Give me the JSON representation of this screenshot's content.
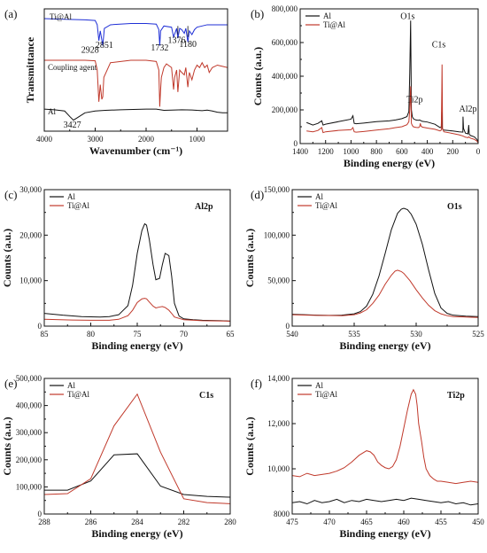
{
  "chart_data": [
    {
      "type": "line",
      "panel_label": "(a)",
      "xlabel": "Wavenumber (cm⁻¹)",
      "ylabel": "Transmittance",
      "xlim": [
        4000,
        400
      ],
      "x_reversed": true,
      "xticks": [
        4000,
        3000,
        2000,
        1000
      ],
      "series": [
        {
          "name": "Ti@Al",
          "color": "#1f2fd6",
          "x": [
            4000,
            3600,
            3200,
            3000,
            2960,
            2928,
            2900,
            2851,
            2820,
            2700,
            2300,
            2000,
            1800,
            1750,
            1732,
            1715,
            1650,
            1500,
            1460,
            1400,
            1376,
            1340,
            1300,
            1250,
            1220,
            1180,
            1150,
            1100,
            1050,
            1000,
            800,
            600,
            400
          ],
          "y": [
            92,
            91.5,
            91,
            90.5,
            87,
            74,
            82,
            70,
            84,
            87,
            88,
            88,
            87.5,
            83,
            70,
            82,
            86,
            85,
            77,
            84,
            76,
            84,
            83,
            80,
            84,
            73,
            82,
            79,
            83,
            85,
            87,
            87,
            87
          ]
        },
        {
          "name": "Coupling agent",
          "color": "#c0392b",
          "x": [
            4000,
            3600,
            3200,
            3000,
            2960,
            2928,
            2900,
            2870,
            2851,
            2830,
            2700,
            2300,
            2000,
            1800,
            1750,
            1732,
            1715,
            1700,
            1650,
            1600,
            1500,
            1460,
            1440,
            1400,
            1376,
            1340,
            1300,
            1250,
            1220,
            1180,
            1150,
            1100,
            1050,
            1000,
            950,
            900,
            850,
            800,
            760,
            700,
            600,
            500,
            400
          ],
          "y": [
            58,
            58,
            58,
            57.5,
            50,
            24,
            38,
            26,
            28,
            44,
            56,
            58,
            58,
            57,
            50,
            20,
            34,
            44,
            52,
            55,
            52,
            34,
            44,
            50,
            32,
            50,
            48,
            46,
            52,
            36,
            48,
            42,
            50,
            54,
            52,
            56,
            52,
            54,
            48,
            52,
            54,
            53,
            52
          ]
        },
        {
          "name": "Al",
          "color": "#111111",
          "x": [
            4000,
            3800,
            3600,
            3500,
            3427,
            3350,
            3200,
            3000,
            2800,
            2500,
            2000,
            1800,
            1650,
            1500,
            1300,
            1100,
            1000,
            900,
            800,
            700,
            600,
            500,
            400
          ],
          "y": [
            18,
            17.5,
            16.5,
            12,
            9,
            11,
            15,
            16.5,
            17,
            17.5,
            18,
            18,
            17,
            17.2,
            17.5,
            17.3,
            17,
            16.8,
            17.2,
            16.5,
            15.5,
            15,
            15
          ]
        }
      ],
      "annotations": [
        "2928",
        "2851",
        "1732",
        "1376",
        "1180",
        "3427"
      ]
    },
    {
      "type": "line",
      "panel_label": "(b)",
      "xlabel": "Binding energy (eV)",
      "ylabel": "Counts (a.u.)",
      "xlim": [
        1400,
        0
      ],
      "x_reversed": true,
      "ylim": [
        0,
        800000
      ],
      "xticks": [
        1400,
        1200,
        1000,
        800,
        600,
        400,
        200,
        0
      ],
      "yticks": [
        0,
        200000,
        400000,
        600000,
        800000
      ],
      "ytick_labels": [
        "0",
        "200,000",
        "400,000",
        "600,000",
        "800,000"
      ],
      "legend_position": "top-left",
      "series": [
        {
          "name": "Al",
          "color": "#111111",
          "x": [
            1350,
            1300,
            1260,
            1230,
            1220,
            1200,
            1100,
            1000,
            985,
            975,
            960,
            900,
            800,
            700,
            650,
            600,
            560,
            545,
            538,
            531,
            525,
            518,
            510,
            490,
            470,
            460,
            450,
            440,
            400,
            340,
            300,
            290,
            286,
            284,
            280,
            270,
            200,
            150,
            120,
            119,
            115,
            100,
            90,
            80,
            74,
            70,
            60,
            30,
            10,
            0
          ],
          "y": [
            125000,
            110000,
            120000,
            135000,
            110000,
            115000,
            130000,
            145000,
            165000,
            120000,
            118000,
            122000,
            130000,
            135000,
            140000,
            148000,
            160000,
            190000,
            420000,
            730000,
            200000,
            160000,
            148000,
            140000,
            138000,
            140000,
            136000,
            132000,
            128000,
            115000,
            95000,
            98000,
            190000,
            100000,
            85000,
            80000,
            75000,
            70000,
            68000,
            160000,
            90000,
            62000,
            60000,
            58000,
            110000,
            55000,
            48000,
            40000,
            25000,
            10000
          ]
        },
        {
          "name": "Ti@Al",
          "color": "#c0392b",
          "x": [
            1350,
            1300,
            1260,
            1230,
            1220,
            1200,
            1100,
            1000,
            985,
            975,
            960,
            900,
            800,
            700,
            650,
            600,
            560,
            545,
            538,
            531,
            525,
            518,
            510,
            490,
            470,
            460,
            455,
            450,
            440,
            400,
            340,
            300,
            290,
            286,
            284,
            280,
            270,
            200,
            150,
            120,
            100,
            80,
            74,
            60,
            30,
            10,
            0
          ],
          "y": [
            75000,
            70000,
            78000,
            95000,
            65000,
            70000,
            78000,
            82000,
            95000,
            70000,
            68000,
            72000,
            80000,
            88000,
            95000,
            100000,
            112000,
            130000,
            200000,
            340000,
            120000,
            108000,
            100000,
            96000,
            95000,
            100000,
            120000,
            105000,
            98000,
            92000,
            85000,
            75000,
            80000,
            310000,
            470000,
            90000,
            70000,
            60000,
            52000,
            45000,
            38000,
            35000,
            40000,
            32000,
            25000,
            15000,
            5000
          ]
        }
      ],
      "annotations": [
        "O1s",
        "C1s",
        "Ti2p",
        "Al2p"
      ]
    },
    {
      "type": "line",
      "panel_label": "(c)",
      "panel_title": "Al2p",
      "xlabel": "Binding energy (eV)",
      "ylabel": "Counts (a.u.)",
      "xlim": [
        85,
        65
      ],
      "x_reversed": true,
      "ylim": [
        0,
        30000
      ],
      "xticks": [
        85,
        80,
        75,
        70,
        65
      ],
      "yticks": [
        0,
        10000,
        20000,
        30000
      ],
      "ytick_labels": [
        "0",
        "10,000",
        "20,000",
        "30,000"
      ],
      "legend_position": "top-left",
      "series": [
        {
          "name": "Al",
          "color": "#111111",
          "x": [
            85,
            83,
            81,
            79,
            78,
            77,
            76,
            75.5,
            75,
            74.5,
            74.2,
            74,
            73.7,
            73.3,
            73,
            72.6,
            72.3,
            72,
            71.6,
            71.3,
            71,
            70.5,
            70,
            69,
            68,
            66,
            65
          ],
          "y": [
            2800,
            2400,
            2100,
            2000,
            2100,
            2500,
            4500,
            9000,
            16000,
            21000,
            22500,
            22200,
            19000,
            13500,
            10200,
            10500,
            13500,
            16000,
            15500,
            11000,
            5000,
            2200,
            1600,
            1400,
            1300,
            1200,
            1100
          ]
        },
        {
          "name": "Ti@Al",
          "color": "#c0392b",
          "x": [
            85,
            82,
            80,
            78,
            77,
            76,
            75.5,
            75,
            74.5,
            74.2,
            74,
            73.7,
            73.3,
            73,
            72.6,
            72.3,
            72,
            71.6,
            71.3,
            71,
            70,
            68,
            65
          ],
          "y": [
            1500,
            1350,
            1300,
            1300,
            1500,
            2300,
            3500,
            5200,
            6000,
            6100,
            6000,
            5300,
            4400,
            4000,
            4200,
            4300,
            4100,
            3500,
            2800,
            2000,
            1400,
            1200,
            1100
          ]
        }
      ]
    },
    {
      "type": "line",
      "panel_label": "(d)",
      "panel_title": "O1s",
      "xlabel": "Binding energy (eV)",
      "ylabel": "Counts (a.u.)",
      "xlim": [
        540,
        525
      ],
      "x_reversed": true,
      "ylim": [
        0,
        150000
      ],
      "xticks": [
        540,
        535,
        530,
        525
      ],
      "yticks": [
        0,
        50000,
        100000,
        150000
      ],
      "ytick_labels": [
        "0",
        "50,000",
        "100,000",
        "150,000"
      ],
      "legend_position": "top-left",
      "series": [
        {
          "name": "Al",
          "color": "#111111",
          "x": [
            540,
            539,
            538,
            537,
            536,
            535,
            534.5,
            534,
            533.5,
            533,
            532.5,
            532,
            531.5,
            531.2,
            531,
            530.7,
            530.4,
            530,
            529.5,
            529,
            528.5,
            528,
            527.5,
            527,
            526,
            525
          ],
          "y": [
            13000,
            12500,
            12000,
            11800,
            12000,
            13500,
            16000,
            22000,
            35000,
            55000,
            80000,
            106000,
            124000,
            128500,
            129500,
            128000,
            123000,
            112000,
            90000,
            62000,
            36000,
            20000,
            14000,
            12000,
            11000,
            10500
          ]
        },
        {
          "name": "Ti@Al",
          "color": "#c0392b",
          "x": [
            540,
            538,
            536,
            535,
            534.5,
            534,
            533.5,
            533,
            532.5,
            532,
            531.7,
            531.5,
            531.2,
            531,
            530.5,
            530,
            529.5,
            529,
            528.5,
            528,
            527.5,
            527,
            526,
            525
          ],
          "y": [
            12500,
            11800,
            11500,
            12500,
            14500,
            18000,
            25000,
            34000,
            46000,
            56000,
            60500,
            61500,
            60000,
            58000,
            50000,
            40000,
            31000,
            23000,
            17000,
            13500,
            11500,
            10500,
            10000,
            9500
          ]
        }
      ]
    },
    {
      "type": "line",
      "panel_label": "(e)",
      "panel_title": "C1s",
      "xlabel": "Binding energy (eV)",
      "ylabel": "Counts (a.u.)",
      "xlim": [
        288,
        280
      ],
      "x_reversed": true,
      "ylim": [
        0,
        500000
      ],
      "xticks": [
        288,
        286,
        284,
        282,
        280
      ],
      "yticks": [
        0,
        100000,
        200000,
        300000,
        400000,
        500000
      ],
      "ytick_labels": [
        "0",
        "100,000",
        "200,000",
        "300,000",
        "400,000",
        "500,000"
      ],
      "legend_position": "top-left",
      "series": [
        {
          "name": "Al",
          "color": "#111111",
          "x": [
            288,
            287,
            286,
            285,
            284,
            283,
            282,
            281,
            280
          ],
          "y": [
            88000,
            88000,
            122000,
            218000,
            222000,
            103000,
            72000,
            65000,
            62000
          ]
        },
        {
          "name": "Ti@Al",
          "color": "#c0392b",
          "x": [
            288,
            287,
            286,
            285,
            284,
            283,
            282,
            281,
            280
          ],
          "y": [
            72000,
            75000,
            130000,
            325000,
            442000,
            228000,
            56000,
            42000,
            38000
          ]
        }
      ]
    },
    {
      "type": "line",
      "panel_label": "(f)",
      "panel_title": "Ti2p",
      "xlabel": "Binding energy (eV)",
      "ylabel": "Counts (a.u.)",
      "xlim": [
        475,
        450
      ],
      "x_reversed": true,
      "ylim": [
        8000,
        14000
      ],
      "xticks": [
        475,
        470,
        465,
        460,
        455,
        450
      ],
      "yticks": [
        8000,
        10000,
        12000,
        14000
      ],
      "ytick_labels": [
        "8000",
        "10,000",
        "12,000",
        "14,000"
      ],
      "legend_position": "top-left",
      "series": [
        {
          "name": "Al",
          "color": "#111111",
          "x": [
            475,
            474,
            473,
            472,
            471,
            470,
            469,
            468,
            467,
            466,
            465,
            464,
            463,
            462,
            461,
            460,
            459,
            458,
            457,
            456,
            455,
            454,
            453,
            452,
            451,
            450
          ],
          "y": [
            8500,
            8550,
            8450,
            8600,
            8500,
            8550,
            8650,
            8500,
            8600,
            8550,
            8650,
            8600,
            8550,
            8600,
            8650,
            8600,
            8700,
            8650,
            8600,
            8550,
            8500,
            8550,
            8450,
            8500,
            8400,
            8450
          ]
        },
        {
          "name": "Ti@Al",
          "color": "#c0392b",
          "x": [
            475,
            474,
            473,
            472,
            471,
            470,
            469,
            468,
            467,
            466,
            465,
            464.5,
            464,
            463.5,
            463,
            462.5,
            462,
            461.5,
            461,
            460.5,
            460,
            459.5,
            459,
            458.7,
            458.4,
            458.2,
            458,
            457.6,
            457.3,
            457,
            456.5,
            456,
            455.5,
            455,
            454,
            453,
            452,
            451,
            450
          ],
          "y": [
            9700,
            9650,
            9800,
            9700,
            9750,
            9800,
            9900,
            10050,
            10300,
            10600,
            10800,
            10750,
            10600,
            10300,
            10150,
            10050,
            10000,
            10100,
            10400,
            11000,
            11800,
            12600,
            13300,
            13500,
            13300,
            12800,
            12000,
            11200,
            10500,
            10000,
            9700,
            9550,
            9450,
            9450,
            9400,
            9350,
            9400,
            9450,
            9400
          ]
        }
      ]
    }
  ]
}
